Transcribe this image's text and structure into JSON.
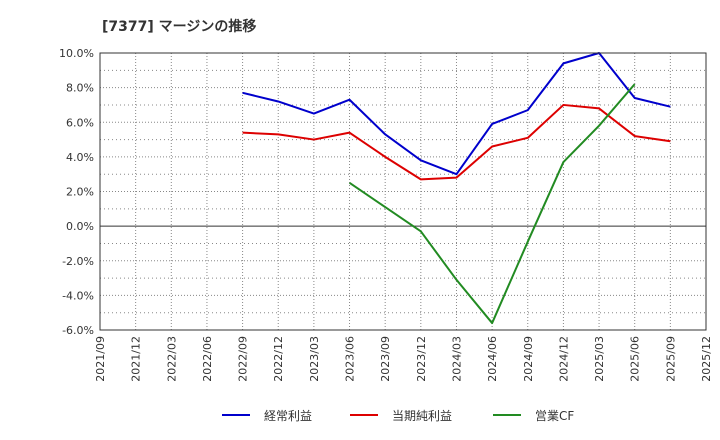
{
  "chart_data": {
    "type": "line",
    "title": "[7377]  マージンの推移",
    "categories": [
      "2021/09",
      "2021/12",
      "2022/03",
      "2022/06",
      "2022/09",
      "2022/12",
      "2023/03",
      "2023/06",
      "2023/09",
      "2023/12",
      "2024/03",
      "2024/06",
      "2024/09",
      "2024/12",
      "2025/03",
      "2025/06",
      "2025/09",
      "2025/12"
    ],
    "yticks": [
      "10.0%",
      "8.0%",
      "6.0%",
      "4.0%",
      "2.0%",
      "0.0%",
      "-2.0%",
      "-4.0%",
      "-6.0%"
    ],
    "ylim": [
      -6.0,
      10.0
    ],
    "series": [
      {
        "name": "経常利益",
        "color": "#0000cc",
        "values": [
          null,
          null,
          null,
          null,
          7.7,
          7.2,
          6.5,
          7.3,
          5.3,
          3.8,
          3.0,
          5.9,
          6.7,
          9.4,
          10.0,
          7.4,
          6.9,
          null
        ]
      },
      {
        "name": "当期純利益",
        "color": "#dd0000",
        "values": [
          null,
          null,
          null,
          null,
          5.4,
          5.3,
          5.0,
          5.4,
          4.0,
          2.7,
          2.8,
          4.6,
          5.1,
          7.0,
          6.8,
          5.2,
          4.9,
          null
        ]
      },
      {
        "name": "営業CF",
        "color": "#228b22",
        "values": [
          null,
          null,
          null,
          null,
          null,
          null,
          null,
          2.5,
          1.1,
          -0.3,
          -3.1,
          -5.6,
          -0.9,
          3.7,
          5.8,
          8.2,
          null,
          null
        ]
      }
    ]
  }
}
